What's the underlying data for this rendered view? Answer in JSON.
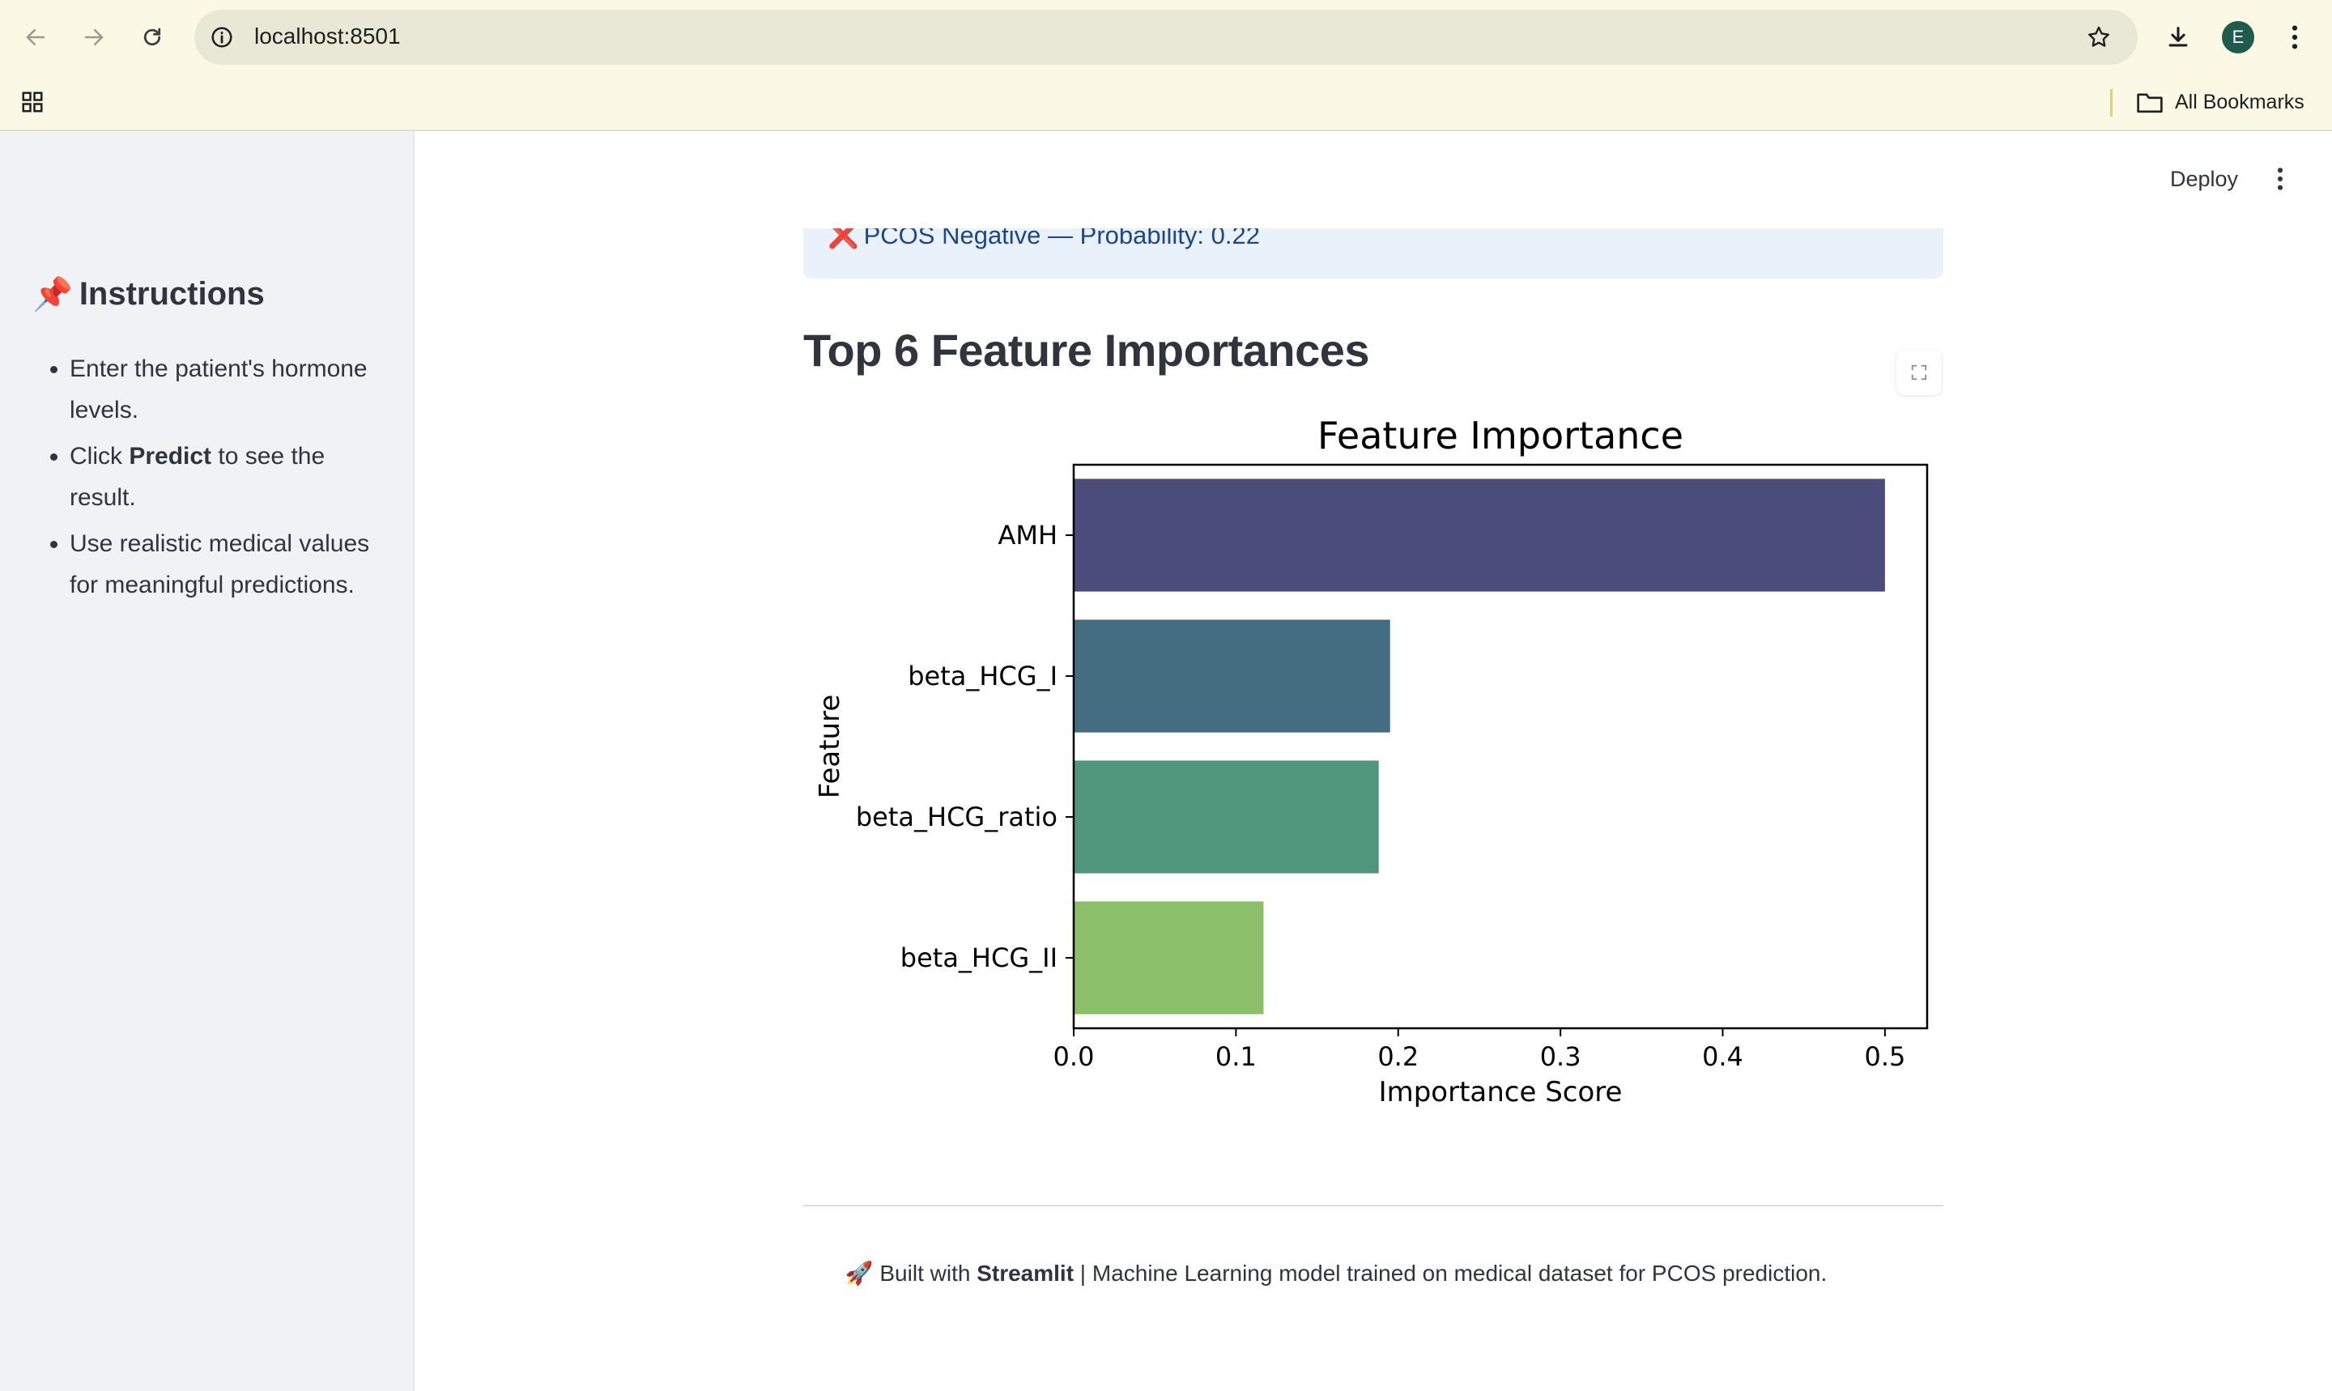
{
  "browser": {
    "url": "localhost:8501",
    "profile_initial": "E",
    "bookmarks_label": "All Bookmarks"
  },
  "sidebar": {
    "title": "Instructions",
    "title_emoji": "📌",
    "items": [
      {
        "text": "Enter the patient's hormone levels."
      },
      {
        "pre": "Click ",
        "bold": "Predict",
        "post": " to see the result."
      },
      {
        "text": "Use realistic medical values for meaningful predictions."
      }
    ]
  },
  "header": {
    "deploy_label": "Deploy"
  },
  "result": {
    "icon": "❌",
    "text": "PCOS Negative — Probability: 0.22"
  },
  "section": {
    "title": "Top 6 Feature Importances"
  },
  "chart_data": {
    "type": "bar",
    "orientation": "horizontal",
    "title": "Feature Importance",
    "xlabel": "Importance Score",
    "ylabel": "Feature",
    "categories": [
      "AMH",
      "beta_HCG_I",
      "beta_HCG_ratio",
      "beta_HCG_II"
    ],
    "values": [
      0.5,
      0.195,
      0.188,
      0.117
    ],
    "colors": [
      "#4b4b7c",
      "#446d82",
      "#4f967d",
      "#8cbf6a"
    ],
    "xlim": [
      0,
      0.526
    ],
    "xticks": [
      "0.0",
      "0.1",
      "0.2",
      "0.3",
      "0.4",
      "0.5"
    ],
    "xtick_values": [
      0,
      0.1,
      0.2,
      0.3,
      0.4,
      0.5
    ],
    "grid": false
  },
  "footer": {
    "emoji": "🚀",
    "pre": "Built with ",
    "bold": "Streamlit",
    "post": " | Machine Learning model trained on medical dataset for PCOS prediction."
  }
}
